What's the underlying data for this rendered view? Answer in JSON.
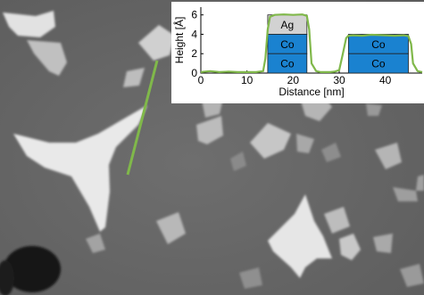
{
  "chart_data": {
    "type": "line",
    "xlabel": "Distance [nm]",
    "ylabel": "Height [Å]",
    "x_ticks": [
      "0",
      "10",
      "20",
      "30",
      "40"
    ],
    "y_ticks": [
      "0",
      "2",
      "4",
      "6"
    ],
    "xlim": [
      0,
      48
    ],
    "ylim": [
      0,
      6.8
    ],
    "series": [
      {
        "x": [
          0,
          2,
          4,
          6,
          8,
          10,
          12,
          13.5,
          14,
          14.5,
          15,
          16,
          18,
          20,
          22,
          23,
          23.5,
          24,
          25,
          26,
          27,
          28,
          29,
          30,
          30.8,
          31.5,
          32,
          33,
          35,
          37,
          40,
          42,
          44,
          45,
          45.6,
          46,
          47,
          48
        ],
        "y": [
          0.1,
          0.2,
          0.1,
          0.15,
          0.1,
          0.1,
          0.1,
          0.2,
          1.5,
          4.5,
          5.8,
          6.0,
          6.05,
          6.0,
          6.05,
          5.9,
          4.5,
          1.0,
          0.2,
          0.1,
          0.1,
          0.1,
          0.15,
          0.3,
          2.0,
          3.6,
          3.85,
          3.9,
          3.85,
          3.95,
          3.9,
          3.85,
          3.9,
          3.8,
          3.0,
          1.0,
          0.2,
          0.1
        ]
      }
    ],
    "annotations": [
      {
        "label": "Ag",
        "x0": 14.5,
        "x1": 23,
        "y0": 4,
        "y1": 6,
        "color": "#d2d2d2"
      },
      {
        "label": "Co",
        "x0": 14.5,
        "x1": 23,
        "y0": 2,
        "y1": 4,
        "color": "#1a82d0"
      },
      {
        "label": "Co",
        "x0": 14.5,
        "x1": 23,
        "y0": 0,
        "y1": 2,
        "color": "#1a82d0"
      },
      {
        "label": "Co",
        "x0": 32,
        "x1": 45,
        "y0": 2,
        "y1": 4,
        "color": "#1a82d0"
      },
      {
        "label": "Co",
        "x0": 32,
        "x1": 45,
        "y0": 0,
        "y1": 2,
        "color": "#1a82d0"
      }
    ],
    "line_color": "#80b84a",
    "grid": false
  }
}
